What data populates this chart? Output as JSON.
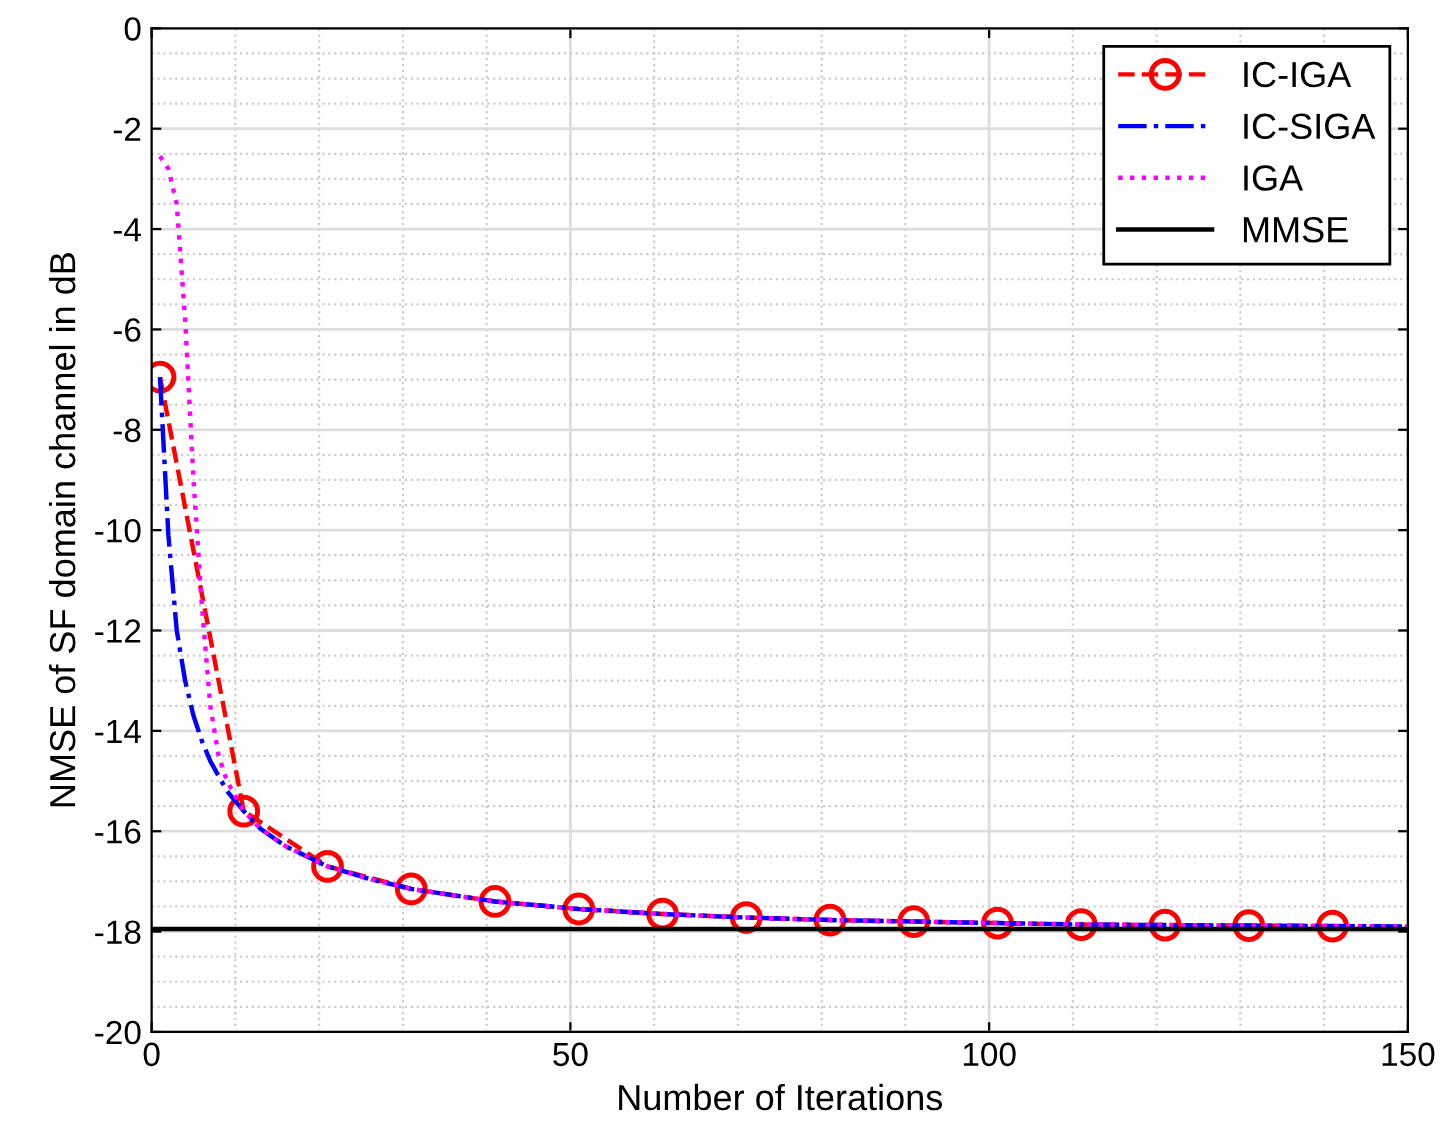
{
  "chart_data": {
    "type": "line",
    "xlabel": "Number of Iterations",
    "ylabel": "NMSE of SF domain channel in dB",
    "xlim": [
      0,
      150
    ],
    "xticks": [
      0,
      50,
      100,
      150
    ],
    "ylim": [
      -20,
      0
    ],
    "yticks": [
      -20,
      -18,
      -16,
      -14,
      -12,
      -10,
      -8,
      -6,
      -4,
      -2,
      0
    ],
    "grid": true,
    "legend": "top right",
    "series": [
      {
        "name": "IC-IGA",
        "color": "#ff0000",
        "line_style": "dashed",
        "marker": "circle",
        "x": [
          1,
          11,
          21,
          31,
          41,
          51,
          61,
          71,
          81,
          91,
          101,
          111,
          121,
          131,
          141
        ],
        "values": [
          -6.95,
          -15.6,
          -16.7,
          -17.15,
          -17.4,
          -17.55,
          -17.65,
          -17.72,
          -17.77,
          -17.8,
          -17.83,
          -17.86,
          -17.87,
          -17.88,
          -17.89
        ]
      },
      {
        "name": "IC-SIGA",
        "color": "#0000ff",
        "line_style": "dashdot",
        "marker": "none",
        "x": [
          1,
          2,
          3,
          4,
          5,
          6,
          7,
          8,
          9,
          11,
          13,
          16,
          21,
          26,
          31,
          41,
          51,
          61,
          71,
          81,
          91,
          101,
          111,
          121,
          131,
          141,
          150
        ],
        "values": [
          -6.95,
          -10.1,
          -12.0,
          -13.0,
          -13.7,
          -14.2,
          -14.6,
          -14.9,
          -15.2,
          -15.6,
          -15.95,
          -16.3,
          -16.7,
          -16.95,
          -17.15,
          -17.4,
          -17.55,
          -17.65,
          -17.72,
          -17.77,
          -17.8,
          -17.83,
          -17.86,
          -17.87,
          -17.88,
          -17.89,
          -17.9
        ]
      },
      {
        "name": "IGA",
        "color": "#ff00ff",
        "line_style": "dotted",
        "marker": "none",
        "x": [
          1,
          2,
          3,
          4,
          5,
          6,
          7,
          8,
          9,
          11,
          13,
          16,
          21,
          26,
          31,
          41,
          51,
          61,
          71,
          81,
          91,
          101,
          111,
          121,
          131,
          141,
          150
        ],
        "values": [
          -2.55,
          -2.8,
          -3.5,
          -5.8,
          -9.0,
          -11.5,
          -13.5,
          -14.5,
          -15.0,
          -15.6,
          -15.95,
          -16.3,
          -16.7,
          -16.95,
          -17.15,
          -17.4,
          -17.55,
          -17.65,
          -17.72,
          -17.77,
          -17.8,
          -17.83,
          -17.86,
          -17.87,
          -17.88,
          -17.89,
          -17.9
        ]
      },
      {
        "name": "MMSE",
        "color": "#000000",
        "line_style": "solid",
        "marker": "none",
        "x": [
          0,
          150
        ],
        "values": [
          -17.95,
          -17.95
        ]
      }
    ]
  }
}
